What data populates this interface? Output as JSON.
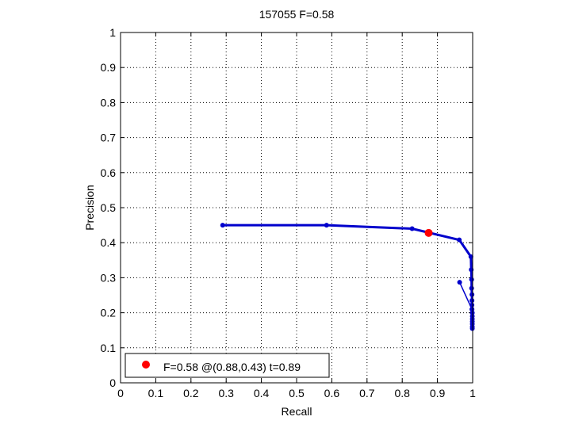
{
  "chart_data": {
    "type": "line",
    "title": "157055 F=0.58",
    "xlabel": "Recall",
    "ylabel": "Precision",
    "xlim": [
      0,
      1
    ],
    "ylim": [
      0,
      1
    ],
    "grid": true,
    "xticks": [
      0,
      0.1,
      0.2,
      0.3,
      0.4,
      0.5,
      0.6,
      0.7,
      0.8,
      0.9,
      1
    ],
    "xtick_labels": [
      "0",
      "0.1",
      "0.2",
      "0.3",
      "0.4",
      "0.5",
      "0.6",
      "0.7",
      "0.8",
      "0.9",
      "1"
    ],
    "yticks": [
      0,
      0.1,
      0.2,
      0.3,
      0.4,
      0.5,
      0.6,
      0.7,
      0.8,
      0.9,
      1
    ],
    "ytick_labels": [
      "0",
      "0.1",
      "0.2",
      "0.3",
      "0.4",
      "0.5",
      "0.6",
      "0.7",
      "0.8",
      "0.9",
      "1"
    ],
    "series": [
      {
        "color": "#0000cc",
        "x": [
          0.29,
          0.585,
          0.828,
          0.962,
          0.995,
          0.996,
          0.997,
          0.997,
          0.998,
          0.998,
          0.998,
          0.998,
          0.999,
          0.999,
          0.999,
          0.999,
          0.999,
          0.999,
          0.999
        ],
        "y": [
          0.45,
          0.45,
          0.44,
          0.408,
          0.36,
          0.323,
          0.295,
          0.27,
          0.252,
          0.235,
          0.222,
          0.21,
          0.2,
          0.19,
          0.182,
          0.175,
          0.168,
          0.16,
          0.155
        ]
      },
      {
        "color": "#0000cc",
        "x": [
          0.963,
          0.998
        ],
        "y": [
          0.287,
          0.21
        ]
      }
    ],
    "best_point": {
      "x": 0.875,
      "y": 0.428,
      "color": "#ff0000"
    },
    "legend": {
      "position": "bottom-left",
      "label": "F=0.58 @(0.88,0.43) t=0.89"
    }
  }
}
